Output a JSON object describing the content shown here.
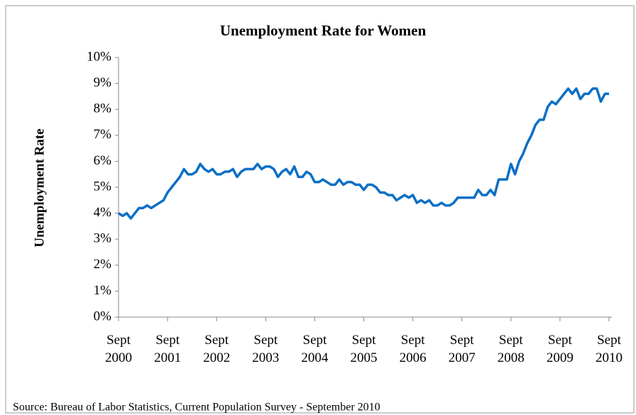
{
  "chart_data": {
    "type": "line",
    "title": "Unemployment Rate for Women",
    "y_label": "Unemployment Rate",
    "source": "Source: Bureau of Labor Statistics, Current Population Survey  - September 2010",
    "categories": [
      "Sept 2000",
      null,
      null,
      null,
      null,
      null,
      null,
      null,
      null,
      null,
      null,
      null,
      "Sept 2001",
      null,
      null,
      null,
      null,
      null,
      null,
      null,
      null,
      null,
      null,
      null,
      "Sept 2002",
      null,
      null,
      null,
      null,
      null,
      null,
      null,
      null,
      null,
      null,
      null,
      "Sept 2003",
      null,
      null,
      null,
      null,
      null,
      null,
      null,
      null,
      null,
      null,
      null,
      "Sept 2004",
      null,
      null,
      null,
      null,
      null,
      null,
      null,
      null,
      null,
      null,
      null,
      "Sept 2005",
      null,
      null,
      null,
      null,
      null,
      null,
      null,
      null,
      null,
      null,
      null,
      "Sept 2006",
      null,
      null,
      null,
      null,
      null,
      null,
      null,
      null,
      null,
      null,
      null,
      "Sept 2007",
      null,
      null,
      null,
      null,
      null,
      null,
      null,
      null,
      null,
      null,
      null,
      "Sept 2008",
      null,
      null,
      null,
      null,
      null,
      null,
      null,
      null,
      null,
      null,
      null,
      "Sept 2009",
      null,
      null,
      null,
      null,
      null,
      null,
      null,
      null,
      null,
      null,
      null,
      "Sept 2010"
    ],
    "series": [
      {
        "name": "Unemployment Rate",
        "color": "#0b6fc6",
        "values": [
          4.0,
          3.9,
          4.0,
          3.8,
          4.0,
          4.2,
          4.2,
          4.3,
          4.2,
          4.3,
          4.4,
          4.5,
          4.8,
          5.0,
          5.2,
          5.4,
          5.7,
          5.5,
          5.5,
          5.6,
          5.9,
          5.7,
          5.6,
          5.7,
          5.5,
          5.5,
          5.6,
          5.6,
          5.7,
          5.4,
          5.6,
          5.7,
          5.7,
          5.7,
          5.9,
          5.7,
          5.8,
          5.8,
          5.7,
          5.4,
          5.6,
          5.7,
          5.5,
          5.8,
          5.4,
          5.4,
          5.6,
          5.5,
          5.2,
          5.2,
          5.3,
          5.2,
          5.1,
          5.1,
          5.3,
          5.1,
          5.2,
          5.2,
          5.1,
          5.1,
          4.9,
          5.1,
          5.1,
          5.0,
          4.8,
          4.8,
          4.7,
          4.7,
          4.5,
          4.6,
          4.7,
          4.6,
          4.7,
          4.4,
          4.5,
          4.4,
          4.5,
          4.3,
          4.3,
          4.4,
          4.3,
          4.3,
          4.4,
          4.6,
          4.6,
          4.6,
          4.6,
          4.6,
          4.9,
          4.7,
          4.7,
          4.9,
          4.7,
          5.3,
          5.3,
          5.3,
          5.9,
          5.5,
          6.0,
          6.3,
          6.7,
          7.0,
          7.4,
          7.6,
          7.6,
          8.1,
          8.3,
          8.2,
          8.4,
          8.6,
          8.8,
          8.6,
          8.8,
          8.4,
          8.6,
          8.6,
          8.8,
          8.8,
          8.3,
          8.6,
          8.6
        ]
      }
    ],
    "ylim": [
      0,
      10
    ],
    "yticks": [
      {
        "value": 0,
        "label": "0%"
      },
      {
        "value": 1,
        "label": "1%"
      },
      {
        "value": 2,
        "label": "2%"
      },
      {
        "value": 3,
        "label": "3%"
      },
      {
        "value": 4,
        "label": "4%"
      },
      {
        "value": 5,
        "label": "5%"
      },
      {
        "value": 6,
        "label": "6%"
      },
      {
        "value": 7,
        "label": "7%"
      },
      {
        "value": 8,
        "label": "8%"
      },
      {
        "value": 9,
        "label": "9%"
      },
      {
        "value": 10,
        "label": "10%"
      }
    ],
    "grid": false,
    "legend": false
  }
}
